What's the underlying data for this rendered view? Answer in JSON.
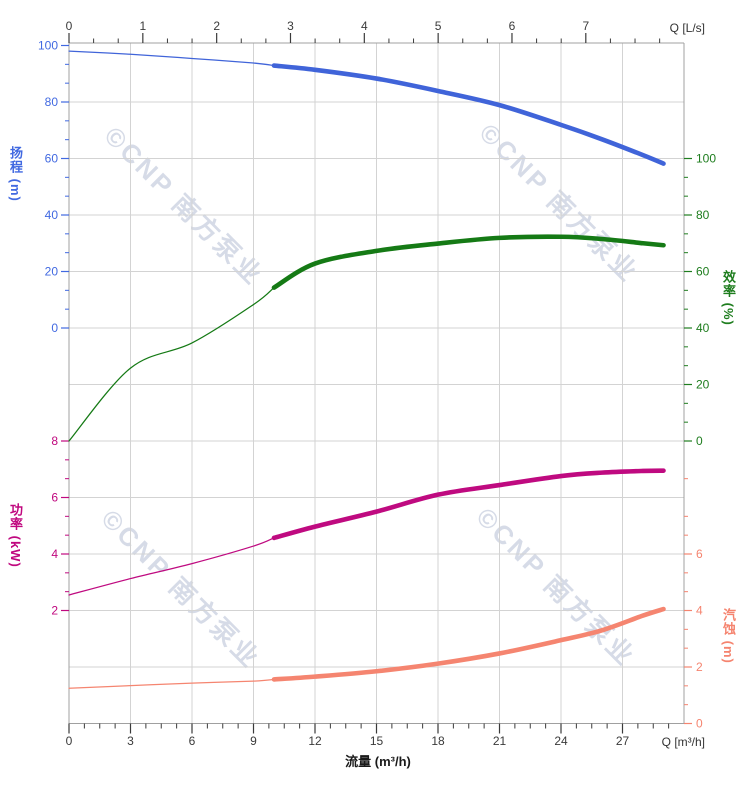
{
  "watermark": {
    "text": "©CNP 南方泵业"
  },
  "axes": {
    "top": {
      "unit_label": "Q [L/s]",
      "ticks": [
        0,
        1,
        2,
        3,
        4,
        5,
        6,
        7
      ],
      "max": 8.33,
      "color": "#3a3a3a"
    },
    "bottom": {
      "unit_label": "Q [m³/h]",
      "title": "流量 (m³/h)",
      "ticks": [
        0,
        3,
        6,
        9,
        12,
        15,
        18,
        21,
        24,
        27
      ],
      "max": 30,
      "color": "#3a3a3a"
    },
    "head": {
      "title": "扬程 (m)",
      "ticks": [
        100,
        80,
        60,
        40,
        20,
        0
      ],
      "color": "#4169e1"
    },
    "efficiency": {
      "title": "效率 (%)",
      "ticks": [
        100,
        80,
        60,
        40,
        20,
        0
      ],
      "color": "#1e7d1e"
    },
    "power": {
      "title": "功率 (kW)",
      "ticks": [
        8,
        6,
        4,
        2
      ],
      "color": "#c0087f"
    },
    "npsh": {
      "title": "汽蚀 (m)",
      "ticks": [
        6,
        4,
        2,
        0
      ],
      "color": "#f5846f"
    }
  },
  "chart_data": {
    "type": "line",
    "title": "",
    "xlabel": "流量 (m³/h)",
    "x_top_label": "Q [L/s]",
    "x_bottom_label": "Q [m³/h]",
    "x_range_m3h": [
      0,
      30
    ],
    "x_top_range_ls": [
      0,
      8.33
    ],
    "grid": true,
    "duty_range_start_m3h": 10,
    "x": [
      0,
      3,
      6,
      9,
      10,
      12,
      15,
      18,
      21,
      24,
      26,
      28,
      29
    ],
    "series": [
      {
        "name": "扬程",
        "unit": "m",
        "scale": "head",
        "color": "#4064d9",
        "axis_range": [
          0,
          100
        ],
        "values": [
          98,
          96.9,
          95.4,
          93.8,
          92.9,
          91.4,
          88.3,
          83.9,
          78.9,
          71.9,
          66.8,
          61.2,
          58.2
        ]
      },
      {
        "name": "效率",
        "unit": "%",
        "scale": "efficiency",
        "color": "#157a15",
        "axis_range": [
          0,
          100
        ],
        "values": [
          0,
          25.8,
          34.7,
          48.3,
          54.3,
          62.8,
          67.3,
          69.9,
          71.9,
          72.3,
          71.5,
          70.0,
          69.3
        ]
      },
      {
        "name": "功率",
        "unit": "kW",
        "scale": "power",
        "color": "#bf0a80",
        "axis_range": [
          2,
          8
        ],
        "values": [
          2.55,
          3.13,
          3.66,
          4.28,
          4.57,
          4.97,
          5.5,
          6.1,
          6.44,
          6.76,
          6.88,
          6.94,
          6.95
        ]
      },
      {
        "name": "汽蚀",
        "unit": "m",
        "scale": "npsh",
        "color": "#f58570",
        "axis_range": [
          0,
          6
        ],
        "values": [
          1.25,
          1.34,
          1.43,
          1.5,
          1.56,
          1.66,
          1.85,
          2.12,
          2.48,
          2.95,
          3.3,
          3.82,
          4.05
        ]
      }
    ]
  }
}
